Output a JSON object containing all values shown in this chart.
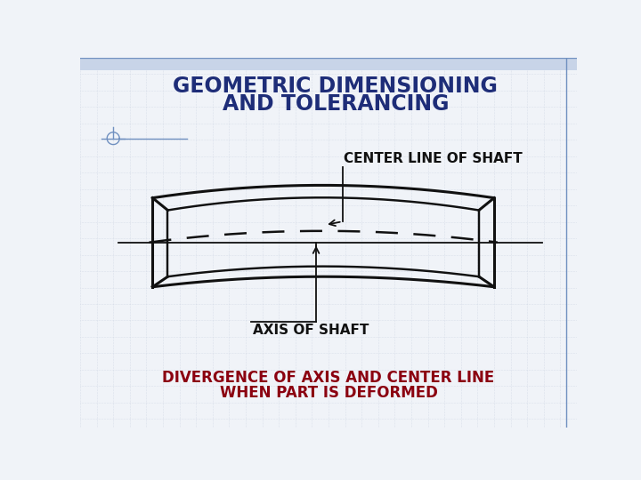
{
  "title_line1": "GEOMETRIC DIMENSIONING",
  "title_line2": "AND TOLERANCING",
  "title_color": "#1e2d78",
  "title_fontsize": 17,
  "subtitle_line1": "DIVERGENCE OF AXIS AND CENTER LINE",
  "subtitle_line2": "WHEN PART IS DEFORMED",
  "subtitle_color": "#8b0010",
  "subtitle_fontsize": 12,
  "label_center_line": "CENTER LINE OF SHAFT",
  "label_axis": "AXIS OF SHAFT",
  "label_fontsize": 11,
  "bg_color": "#f0f3f8",
  "bg_top_color": "#c8d4e8",
  "drawing_color": "#111111",
  "grid_color": "#c8d0df",
  "border_color": "#7090c0"
}
